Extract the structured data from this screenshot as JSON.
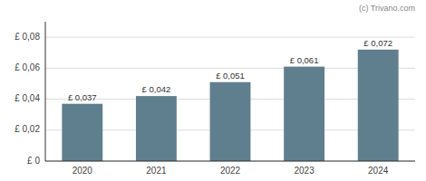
{
  "chart_data": {
    "type": "bar",
    "categories": [
      "2020",
      "2021",
      "2022",
      "2023",
      "2024"
    ],
    "values": [
      0.037,
      0.042,
      0.051,
      0.061,
      0.072
    ],
    "value_labels": [
      "£ 0,037",
      "£ 0,042",
      "£ 0,051",
      "£ 0,061",
      "£ 0,072"
    ],
    "color": "#5f7f8e",
    "ylim": [
      0,
      0.09
    ],
    "yticks": [
      {
        "value": 0,
        "label": "£ 0"
      },
      {
        "value": 0.02,
        "label": "£ 0,02"
      },
      {
        "value": 0.04,
        "label": "£ 0,04"
      },
      {
        "value": 0.06,
        "label": "£ 0,06"
      },
      {
        "value": 0.08,
        "label": "£ 0,08"
      }
    ],
    "grid": true,
    "data_labels": true,
    "annotations": [
      "(c) Trivano.com"
    ]
  }
}
